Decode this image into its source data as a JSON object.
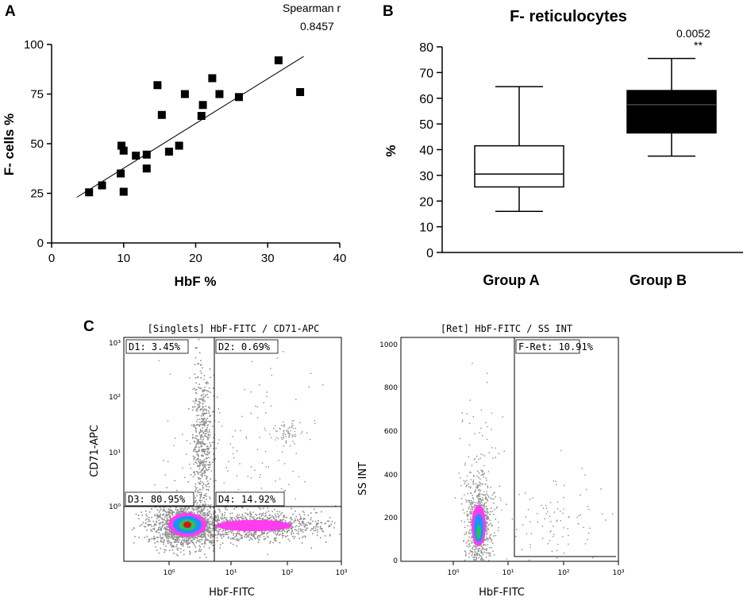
{
  "chart_data": [
    {
      "panel": "A",
      "type": "scatter",
      "title": "",
      "xlabel": "HbF %",
      "ylabel": "F- cells %",
      "xlim": [
        0,
        40
      ],
      "ylim": [
        0,
        100
      ],
      "xticks": [
        "0",
        "10",
        "20",
        "30",
        "40"
      ],
      "yticks": [
        "0",
        "25",
        "50",
        "75",
        "100"
      ],
      "annotation_label": "Spearman r",
      "annotation_value": "0.8457",
      "points": [
        {
          "x": 5.2,
          "y": 25.5
        },
        {
          "x": 7.0,
          "y": 29
        },
        {
          "x": 9.6,
          "y": 35
        },
        {
          "x": 9.7,
          "y": 49
        },
        {
          "x": 10.0,
          "y": 46.5
        },
        {
          "x": 10.0,
          "y": 25.8
        },
        {
          "x": 11.7,
          "y": 44
        },
        {
          "x": 13.2,
          "y": 44.5
        },
        {
          "x": 13.2,
          "y": 37.5
        },
        {
          "x": 14.7,
          "y": 79.5
        },
        {
          "x": 15.3,
          "y": 64.5
        },
        {
          "x": 16.3,
          "y": 46
        },
        {
          "x": 17.7,
          "y": 49
        },
        {
          "x": 18.5,
          "y": 75
        },
        {
          "x": 20.8,
          "y": 64
        },
        {
          "x": 21.0,
          "y": 69.5
        },
        {
          "x": 22.3,
          "y": 83
        },
        {
          "x": 23.3,
          "y": 75
        },
        {
          "x": 26.0,
          "y": 73.5
        },
        {
          "x": 31.5,
          "y": 92
        },
        {
          "x": 34.5,
          "y": 76
        }
      ],
      "fit_line": {
        "x": [
          3.5,
          35
        ],
        "y": [
          23,
          94
        ]
      }
    },
    {
      "panel": "B",
      "type": "box",
      "title": "F- reticulocytes",
      "ylabel": "%",
      "ylim": [
        0,
        80
      ],
      "yticks": [
        "0",
        "10",
        "20",
        "30",
        "40",
        "50",
        "60",
        "70",
        "80"
      ],
      "categories": [
        "Group A",
        "Group B"
      ],
      "boxes": [
        {
          "name": "Group A",
          "min": 16,
          "q1": 25.5,
          "median": 30.5,
          "q3": 41.5,
          "max": 64.5,
          "fill": "#ffffff"
        },
        {
          "name": "Group B",
          "min": 37.5,
          "q1": 46.5,
          "median": 57.5,
          "q3": 63,
          "max": 75.5,
          "fill": "#000000"
        }
      ],
      "p_value": "0.0052",
      "significance": "**"
    },
    {
      "panel": "C",
      "type": "scatter",
      "plots": [
        {
          "title": "[Singlets] HbF-FITC / CD71-APC",
          "xlabel": "HbF-FITC",
          "ylabel": "CD71-APC",
          "scale": "log",
          "xticks": [
            "10⁰",
            "10¹",
            "10²",
            "10³"
          ],
          "yticks": [
            "10⁰",
            "10¹",
            "10²",
            "10³"
          ],
          "quadrants": [
            {
              "label": "D1: 3.45%"
            },
            {
              "label": "D2: 0.69%"
            },
            {
              "label": "D3: 80.95%"
            },
            {
              "label": "D4: 14.92%"
            }
          ]
        },
        {
          "title": "[Ret] HbF-FITC / SS INT",
          "xlabel": "HbF-FITC",
          "ylabel": "SS INT",
          "scale": "log-linear",
          "xticks": [
            "10⁰",
            "10¹",
            "10²",
            "10³"
          ],
          "yticks": [
            "0",
            "200",
            "400",
            "600",
            "800",
            "1000"
          ],
          "gate": {
            "label": "F-Ret: 10.91%"
          }
        }
      ]
    }
  ],
  "panels": {
    "a": "A",
    "b": "B",
    "c": "C"
  },
  "colors": {
    "axis": "#000000",
    "events": "#8c8c8c",
    "density_low": "#ff3cf0",
    "density_mid": "#1e90ff",
    "density_high": "#22c55e",
    "density_core": "#e01010"
  }
}
